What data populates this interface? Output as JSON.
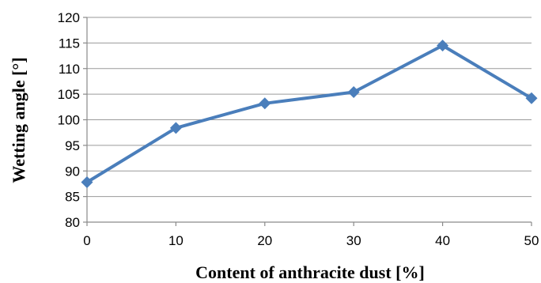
{
  "chart_data": {
    "type": "line",
    "x": [
      0,
      10,
      20,
      30,
      40,
      50
    ],
    "series": [
      {
        "values": [
          87.8,
          98.4,
          103.2,
          105.4,
          114.5,
          104.2
        ]
      }
    ],
    "xlabel": "Content of anthracite dust [%]",
    "ylabel": "Wetting angle [°]",
    "xlim": [
      0,
      50
    ],
    "ylim": [
      80,
      120
    ],
    "x_ticks": [
      0,
      10,
      20,
      30,
      40,
      50
    ],
    "y_ticks": [
      80,
      85,
      90,
      95,
      100,
      105,
      110,
      115,
      120
    ],
    "grid": "horizontal",
    "marker": "diamond",
    "line_color": "#4a7ebb"
  }
}
